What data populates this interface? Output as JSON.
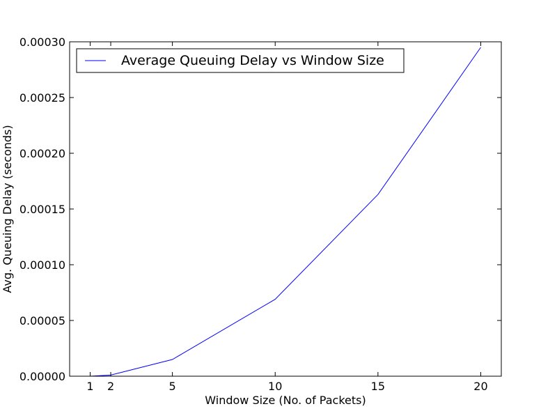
{
  "chart_data": {
    "type": "line",
    "xlabel": "Window Size (No. of Packets)",
    "ylabel": "Avg. Queuing Delay (seconds)",
    "xlim": [
      0,
      21
    ],
    "ylim": [
      0,
      0.0003
    ],
    "grid": false,
    "legend_position": "top-left",
    "x_ticks": [
      1,
      2,
      5,
      10,
      15,
      20
    ],
    "x_tick_labels": [
      "1",
      "2",
      "5",
      "10",
      "15",
      "20"
    ],
    "y_ticks": [
      0,
      5e-05,
      0.0001,
      0.00015,
      0.0002,
      0.00025,
      0.0003
    ],
    "y_tick_labels": [
      "0.00000",
      "0.00005",
      "0.00010",
      "0.00015",
      "0.00020",
      "0.00025",
      "0.00030"
    ],
    "series": [
      {
        "name": "Average Queuing Delay vs Window Size",
        "color": "#0000ff",
        "x": [
          1,
          2,
          5,
          10,
          15,
          20
        ],
        "y": [
          0,
          1e-06,
          1.5e-05,
          6.9e-05,
          0.000163,
          0.000295
        ]
      }
    ]
  }
}
